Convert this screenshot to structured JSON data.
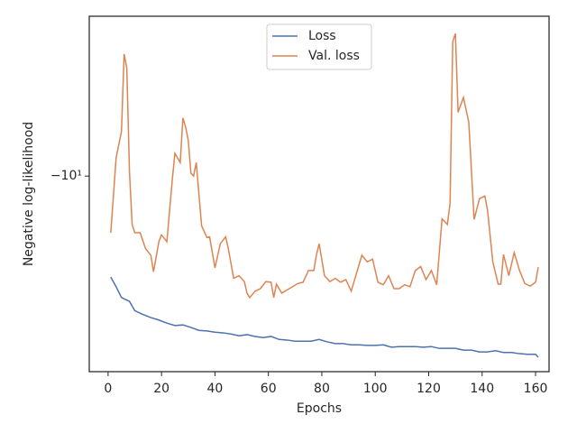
{
  "chart_data": {
    "type": "line",
    "xlabel": "Epochs",
    "ylabel": "Negative log-likelihood",
    "xlim": [
      -7.05,
      165.05
    ],
    "xticks": [
      0,
      20,
      40,
      60,
      80,
      100,
      120,
      140,
      160
    ],
    "ylim": [
      -13,
      -8.07
    ],
    "yticks": [
      {
        "value": -10,
        "label": "−10¹"
      }
    ],
    "yscale": "symlog",
    "legend": "upper center",
    "series": [
      {
        "name": "Loss",
        "color": "#4c72b0",
        "x": [
          1,
          3,
          5,
          8,
          10,
          13,
          16,
          19,
          22,
          25,
          28,
          31,
          34,
          37,
          40,
          43,
          46,
          49,
          52,
          55,
          58,
          61,
          64,
          67,
          70,
          73,
          76,
          79,
          82,
          85,
          88,
          91,
          94,
          97,
          100,
          103,
          106,
          109,
          112,
          115,
          118,
          121,
          124,
          127,
          130,
          133,
          136,
          139,
          142,
          145,
          148,
          151,
          154,
          157,
          160,
          161
        ],
        "values": [
          -11.45,
          -11.6,
          -11.77,
          -11.83,
          -11.98,
          -12.04,
          -12.09,
          -12.13,
          -12.18,
          -12.22,
          -12.21,
          -12.25,
          -12.3,
          -12.31,
          -12.33,
          -12.34,
          -12.36,
          -12.39,
          -12.37,
          -12.4,
          -12.42,
          -12.4,
          -12.45,
          -12.46,
          -12.48,
          -12.48,
          -12.48,
          -12.45,
          -12.49,
          -12.52,
          -12.52,
          -12.54,
          -12.54,
          -12.55,
          -12.55,
          -12.54,
          -12.58,
          -12.57,
          -12.57,
          -12.57,
          -12.58,
          -12.57,
          -12.6,
          -12.6,
          -12.6,
          -12.63,
          -12.63,
          -12.66,
          -12.66,
          -12.64,
          -12.67,
          -12.67,
          -12.69,
          -12.7,
          -12.7,
          -12.75
        ]
      },
      {
        "name": "Val. loss",
        "color": "#dd8452",
        "x": [
          1,
          3,
          5,
          6,
          7,
          8,
          9,
          10,
          12,
          14,
          16,
          17,
          19,
          20,
          22,
          24,
          25,
          27,
          28,
          29,
          30,
          31,
          32,
          33,
          35,
          37,
          38,
          40,
          42,
          44,
          45,
          47,
          49,
          51,
          52,
          53,
          55,
          57,
          59,
          61,
          62,
          63,
          65,
          67,
          69,
          71,
          73,
          75,
          77,
          78,
          79,
          81,
          83,
          85,
          87,
          89,
          91,
          93,
          95,
          97,
          99,
          101,
          103,
          105,
          107,
          109,
          111,
          113,
          115,
          117,
          119,
          121,
          123,
          125,
          127,
          128,
          129,
          130,
          131,
          133,
          135,
          137,
          139,
          141,
          142,
          144,
          146,
          147,
          148,
          150,
          152,
          154,
          156,
          158,
          160,
          161
        ],
        "values": [
          -10.79,
          -9.76,
          -9.42,
          -8.49,
          -8.65,
          -9.94,
          -10.67,
          -10.79,
          -10.79,
          -11.02,
          -11.12,
          -11.37,
          -10.92,
          -10.82,
          -10.92,
          -10.06,
          -9.7,
          -9.82,
          -9.25,
          -9.36,
          -9.53,
          -9.96,
          -10.0,
          -9.82,
          -10.69,
          -10.86,
          -10.85,
          -11.31,
          -10.95,
          -10.85,
          -11.02,
          -11.47,
          -11.43,
          -11.52,
          -11.7,
          -11.77,
          -11.67,
          -11.63,
          -11.52,
          -11.53,
          -11.77,
          -11.56,
          -11.7,
          -11.65,
          -11.6,
          -11.55,
          -11.53,
          -11.35,
          -11.35,
          -11.11,
          -10.95,
          -11.43,
          -11.52,
          -11.47,
          -11.53,
          -11.49,
          -11.67,
          -11.39,
          -11.12,
          -11.22,
          -11.18,
          -11.53,
          -11.57,
          -11.43,
          -11.63,
          -11.63,
          -11.57,
          -11.6,
          -11.35,
          -11.29,
          -11.49,
          -11.35,
          -11.57,
          -10.59,
          -10.67,
          -10.37,
          -8.35,
          -8.26,
          -9.18,
          -9.0,
          -9.3,
          -10.6,
          -10.31,
          -10.27,
          -10.46,
          -11.22,
          -11.56,
          -11.56,
          -11.11,
          -11.43,
          -11.08,
          -11.35,
          -11.55,
          -11.59,
          -11.53,
          -11.3
        ]
      }
    ]
  }
}
